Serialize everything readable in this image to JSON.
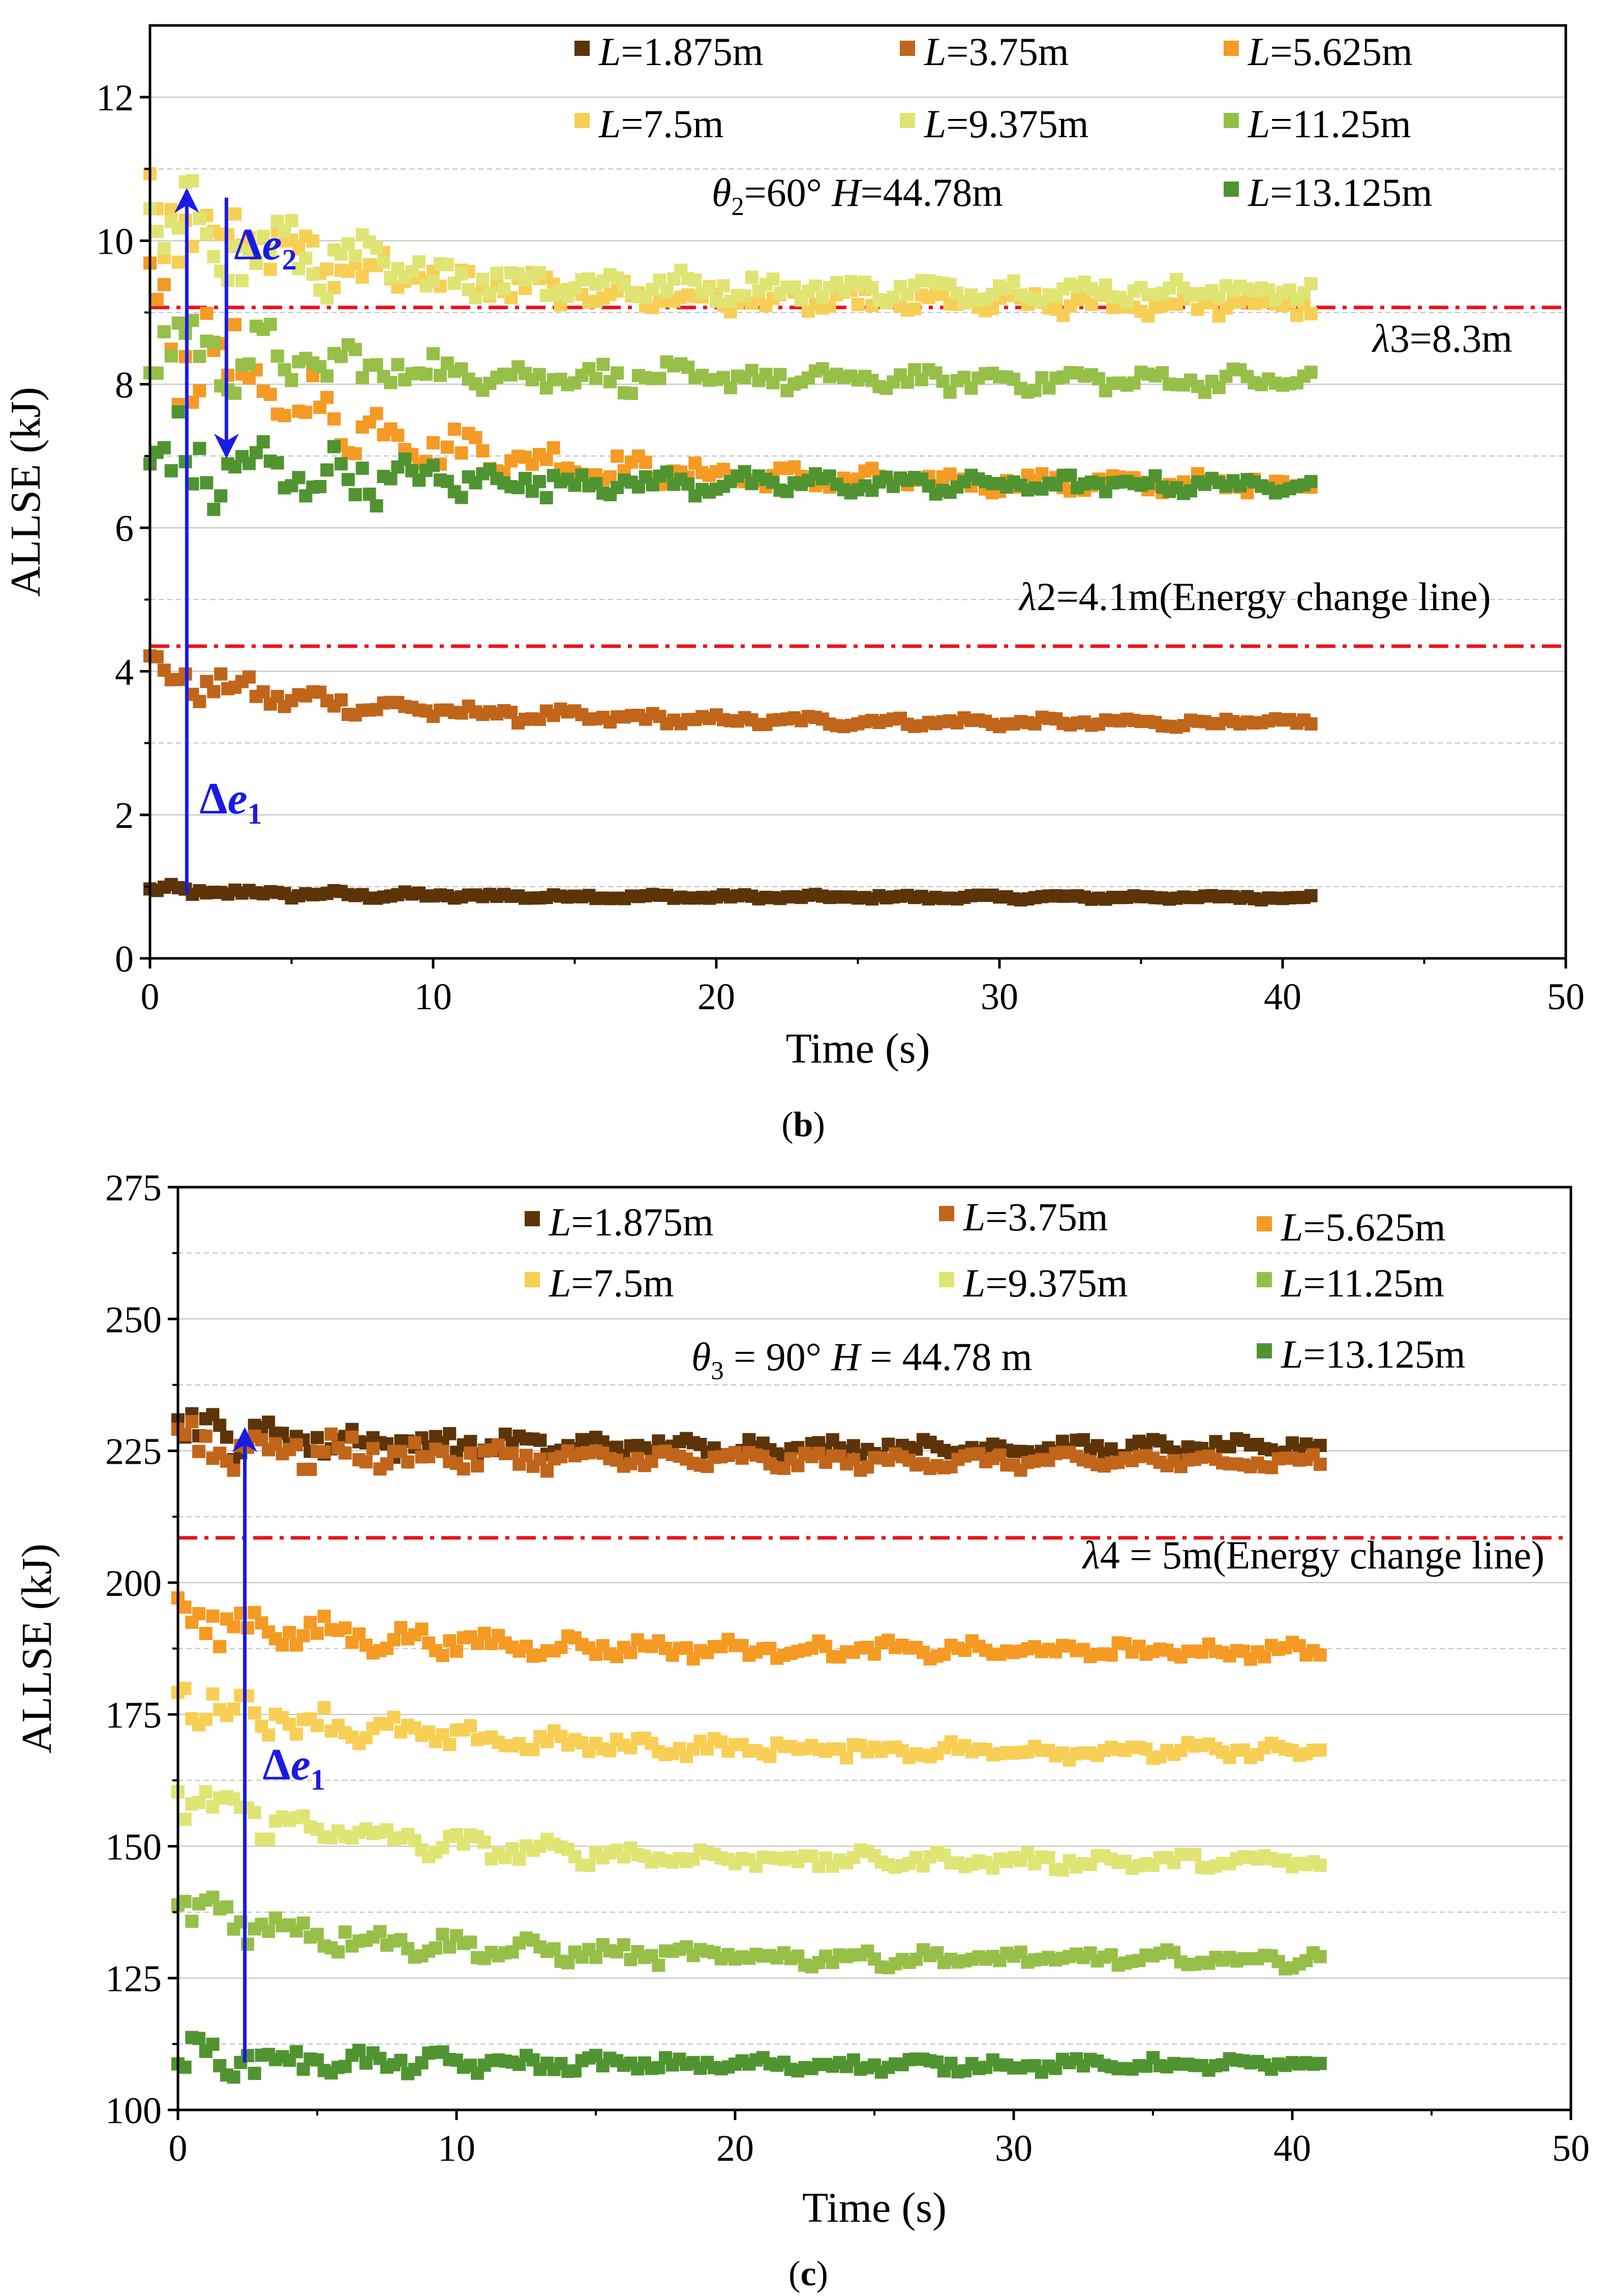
{
  "colors": {
    "L1": "#5c3408",
    "L2": "#c0651a",
    "L3": "#f59a23",
    "L4": "#f8cf55",
    "L5": "#dfe473",
    "L6": "#96bf48",
    "L7": "#4f9430",
    "energy_line": "#e8141e",
    "arrow": "#1a1ae6",
    "grid": "#bfbfbf"
  },
  "chart_data": [
    {
      "type": "scatter",
      "panel_label": "b",
      "title": "θ2=60° H=44.78m",
      "title_parts": {
        "sym": "θ",
        "sub": "2",
        "rest": "=60° ",
        "h_sym": "H",
        "h_rest": "=44.78m"
      },
      "xlabel": "Time (s)",
      "ylabel": "ALLSE (kJ)",
      "xlim": [
        0,
        50
      ],
      "ylim": [
        0,
        13
      ],
      "xticks": [
        0,
        10,
        20,
        30,
        40,
        50
      ],
      "yticks": [
        0,
        2,
        4,
        6,
        8,
        10,
        12
      ],
      "gridlines": [
        1,
        2,
        3,
        4,
        5,
        6,
        7,
        8,
        9,
        10,
        11,
        12
      ],
      "legend": [
        {
          "name": "L=1.875m",
          "sym": "L",
          "rest": "=1.875m"
        },
        {
          "name": "L=3.75m",
          "sym": "L",
          "rest": "=3.75m"
        },
        {
          "name": "L=5.625m",
          "sym": "L",
          "rest": "=5.625m"
        },
        {
          "name": "L=7.5m",
          "sym": "L",
          "rest": "=7.5m"
        },
        {
          "name": "L=9.375m",
          "sym": "L",
          "rest": "=9.375m"
        },
        {
          "name": "L=11.25m",
          "sym": "L",
          "rest": "=11.25m"
        },
        {
          "name": "L=13.125m",
          "sym": "L",
          "rest": "=13.125m"
        }
      ],
      "series": [
        {
          "name": "L=1.875m",
          "color_key": "L1",
          "start": 0.95,
          "end": 0.85,
          "noise_start": 0.08,
          "noise_end": 0.03,
          "t_end": 41
        },
        {
          "name": "L=3.75m",
          "color_key": "L2",
          "start": 4.0,
          "end": 3.28,
          "noise_start": 0.3,
          "noise_end": 0.06,
          "t_end": 41
        },
        {
          "name": "L=5.625m",
          "color_key": "L3",
          "start": 9.0,
          "end": 6.6,
          "noise_start": 1.0,
          "noise_end": 0.12,
          "t_end": 41
        },
        {
          "name": "L=7.5m",
          "color_key": "L4",
          "start": 10.6,
          "end": 9.1,
          "noise_start": 0.7,
          "noise_end": 0.15,
          "t_end": 41
        },
        {
          "name": "L=9.375m",
          "color_key": "L5",
          "start": 10.3,
          "end": 9.3,
          "noise_start": 0.9,
          "noise_end": 0.15,
          "t_end": 41
        },
        {
          "name": "L=11.25m",
          "color_key": "L6",
          "start": 8.6,
          "end": 8.05,
          "noise_start": 0.7,
          "noise_end": 0.15,
          "t_end": 41
        },
        {
          "name": "L=13.125m",
          "color_key": "L7",
          "start": 6.9,
          "end": 6.6,
          "noise_start": 0.8,
          "noise_end": 0.12,
          "t_end": 41
        }
      ],
      "reference_lines": [
        {
          "label": "λ3=8.3m",
          "sym": "λ",
          "rest": "3=8.3m",
          "y": 9.07
        },
        {
          "label": "λ2=4.1m(Energy change line)",
          "sym": "λ",
          "rest": "2=4.1m(Energy change line)",
          "y": 4.35
        }
      ],
      "annotations": [
        {
          "label": "Δe1",
          "delta": "Δ",
          "sym": "e",
          "sub": "1",
          "x": 1.3,
          "from": 0.9,
          "to": 10.7,
          "direction": "up"
        },
        {
          "label": "Δe2",
          "delta": "Δ",
          "sym": "e",
          "sub": "2",
          "x": 2.7,
          "from": 10.6,
          "to": 7.0,
          "direction": "down"
        }
      ]
    },
    {
      "type": "scatter",
      "panel_label": "c",
      "title": "θ3 = 90° H = 44.78 m",
      "title_parts": {
        "sym": "θ",
        "sub": "3",
        "rest": " = 90° ",
        "h_sym": "H",
        "h_rest": " = 44.78 m"
      },
      "xlabel": "Time (s)",
      "ylabel": "ALLSE (kJ)",
      "xlim": [
        0,
        50
      ],
      "ylim": [
        100,
        275
      ],
      "xticks": [
        0,
        10,
        20,
        30,
        40,
        50
      ],
      "yticks": [
        100,
        125,
        150,
        175,
        200,
        225,
        250,
        275
      ],
      "gridlines": [
        112.5,
        125,
        137.5,
        150,
        162.5,
        175,
        187.5,
        200,
        212.5,
        225,
        237.5,
        250,
        262.5
      ],
      "legend": [
        {
          "name": "L=1.875m",
          "sym": "L",
          "rest": "=1.875m"
        },
        {
          "name": "L=3.75m",
          "sym": "L",
          "rest": "=3.75m"
        },
        {
          "name": "L=5.625m",
          "sym": "L",
          "rest": "=5.625m"
        },
        {
          "name": "L=7.5m",
          "sym": "L",
          "rest": "=7.5m"
        },
        {
          "name": "L=9.375m",
          "sym": "L",
          "rest": "=9.375m"
        },
        {
          "name": "L=11.25m",
          "sym": "L",
          "rest": "=11.25m"
        },
        {
          "name": "L=13.125m",
          "sym": "L",
          "rest": "=13.125m"
        }
      ],
      "series": [
        {
          "name": "L=1.875m",
          "color_key": "L1",
          "start": 229,
          "end": 225.5,
          "noise_start": 5,
          "noise_end": 1.5,
          "t_end": 41
        },
        {
          "name": "L=3.75m",
          "color_key": "L2",
          "start": 227,
          "end": 223,
          "noise_start": 6,
          "noise_end": 1.5,
          "t_end": 41
        },
        {
          "name": "L=5.625m",
          "color_key": "L3",
          "start": 194,
          "end": 187,
          "noise_start": 5,
          "noise_end": 1.5,
          "t_end": 41
        },
        {
          "name": "L=7.5m",
          "color_key": "L4",
          "start": 179,
          "end": 168,
          "noise_start": 5,
          "noise_end": 1.5,
          "t_end": 41
        },
        {
          "name": "L=9.375m",
          "color_key": "L5",
          "start": 160,
          "end": 147,
          "noise_start": 5,
          "noise_end": 1.5,
          "t_end": 41
        },
        {
          "name": "L=11.25m",
          "color_key": "L6",
          "start": 139,
          "end": 128.5,
          "noise_start": 5,
          "noise_end": 1.5,
          "t_end": 41
        },
        {
          "name": "L=13.125m",
          "color_key": "L7",
          "start": 110,
          "end": 108.5,
          "noise_start": 4,
          "noise_end": 1.2,
          "t_end": 41
        }
      ],
      "reference_lines": [
        {
          "label": "λ4 = 5m(Energy change line)",
          "sym": "λ",
          "rest": "4 = 5m(Energy change line)",
          "y": 208.5
        }
      ],
      "annotations": [
        {
          "label": "Δe1",
          "delta": "Δ",
          "sym": "e",
          "sub": "1",
          "x": 2.4,
          "from": 109,
          "to": 229,
          "direction": "up"
        }
      ]
    }
  ]
}
